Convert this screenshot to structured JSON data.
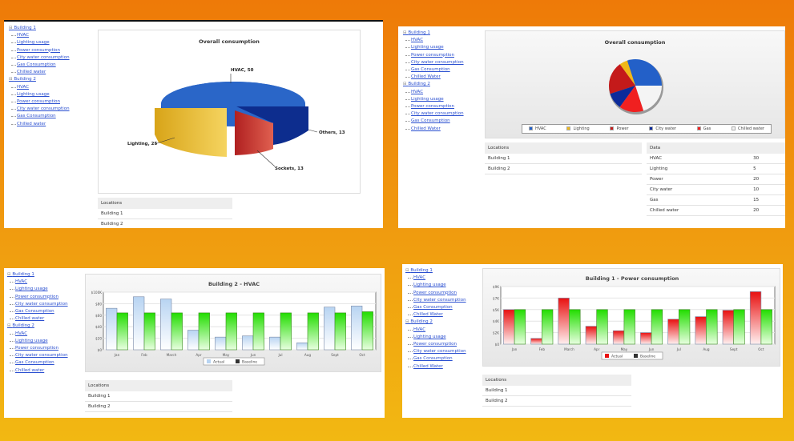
{
  "tree": [
    {
      "label": "Building 1",
      "items": [
        "HVAC",
        "Lighting usage",
        "Power consumption",
        "City water consumption",
        "Gas Consumption",
        "Chilled water"
      ]
    },
    {
      "label": "Building 2",
      "items": [
        "HVAC",
        "Lighting usage",
        "Power consumption",
        "City water consumption",
        "Gas Consumption",
        "Chilled water"
      ]
    }
  ],
  "tree_p2": [
    {
      "label": "Building 1",
      "items": [
        "HVAC",
        "Lighting usage",
        "Power consumption",
        "City water consumption",
        "Gas Consumption",
        "Chilled Water"
      ]
    },
    {
      "label": "Building 2",
      "items": [
        "HVAC",
        "Lighting usage",
        "Power consumption",
        "City water consumption",
        "Gas Consumption",
        "Chilled Water"
      ]
    }
  ],
  "locations": {
    "header": "Locations",
    "rows": [
      "Building 1",
      "Building 2"
    ]
  },
  "data_table": {
    "header": "Data",
    "rows": [
      [
        "HVAC",
        "30"
      ],
      [
        "Lighting",
        "5"
      ],
      [
        "Power",
        "20"
      ],
      [
        "City water",
        "10"
      ],
      [
        "Gas",
        "15"
      ],
      [
        "Chilled water",
        "20"
      ]
    ]
  },
  "colors": {
    "actual_blue": "#cfe3f8",
    "baseline_green": "#33dd11",
    "actual_red": "#e81c1c"
  },
  "chart_data": [
    {
      "type": "pie",
      "title": "Overall consumption",
      "style": "3d-exploded",
      "labels": [
        "HVAC, 50",
        "Lighting, 25",
        "Sockets, 13",
        "Others, 13"
      ],
      "categories": [
        "HVAC",
        "Lighting",
        "Sockets",
        "Others"
      ],
      "values": [
        50,
        25,
        13,
        13
      ]
    },
    {
      "type": "pie",
      "title": "Overall consumption",
      "categories": [
        "HVAC",
        "Lighting",
        "Power",
        "City water",
        "Gas",
        "Chilled water"
      ],
      "values": [
        30,
        5,
        20,
        10,
        15,
        20
      ],
      "colors": [
        "#2360c8",
        "#f0b818",
        "#c41a1a",
        "#0c2a9a",
        "#f02020",
        "#f4f4f4"
      ]
    },
    {
      "type": "bar",
      "title": "Building 2 - HVAC",
      "categories": [
        "Jan",
        "Feb",
        "March",
        "Apr",
        "May",
        "Jun",
        "Jul",
        "Aug",
        "Sept",
        "Oct"
      ],
      "yticks": [
        "$0",
        "$20",
        "$40",
        "$60",
        "$80",
        "$100K"
      ],
      "ylim": [
        0,
        100
      ],
      "series": [
        {
          "name": "Actual",
          "values": [
            72,
            92,
            88,
            34,
            22,
            24,
            22,
            12,
            74,
            76
          ]
        },
        {
          "name": "Baseline",
          "values": [
            64,
            64,
            64,
            64,
            64,
            64,
            64,
            64,
            64,
            66
          ]
        }
      ]
    },
    {
      "type": "bar",
      "title": "Building 1 - Power consumption",
      "categories": [
        "Jan",
        "Feb",
        "March",
        "Apr",
        "May",
        "Jun",
        "Jul",
        "Aug",
        "Sept",
        "Oct"
      ],
      "yticks": [
        "$0",
        "$2K",
        "$4K",
        "$5K",
        "$7K",
        "$9K"
      ],
      "ylim": [
        0,
        9
      ],
      "series": [
        {
          "name": "Actual",
          "values": [
            5.4,
            0.9,
            7.2,
            2.8,
            2.1,
            1.8,
            3.9,
            4.3,
            5.3,
            8.2
          ]
        },
        {
          "name": "Baseline",
          "values": [
            5.4,
            5.4,
            5.4,
            5.4,
            5.4,
            5.4,
            5.4,
            5.4,
            5.4,
            5.4
          ]
        }
      ]
    }
  ]
}
